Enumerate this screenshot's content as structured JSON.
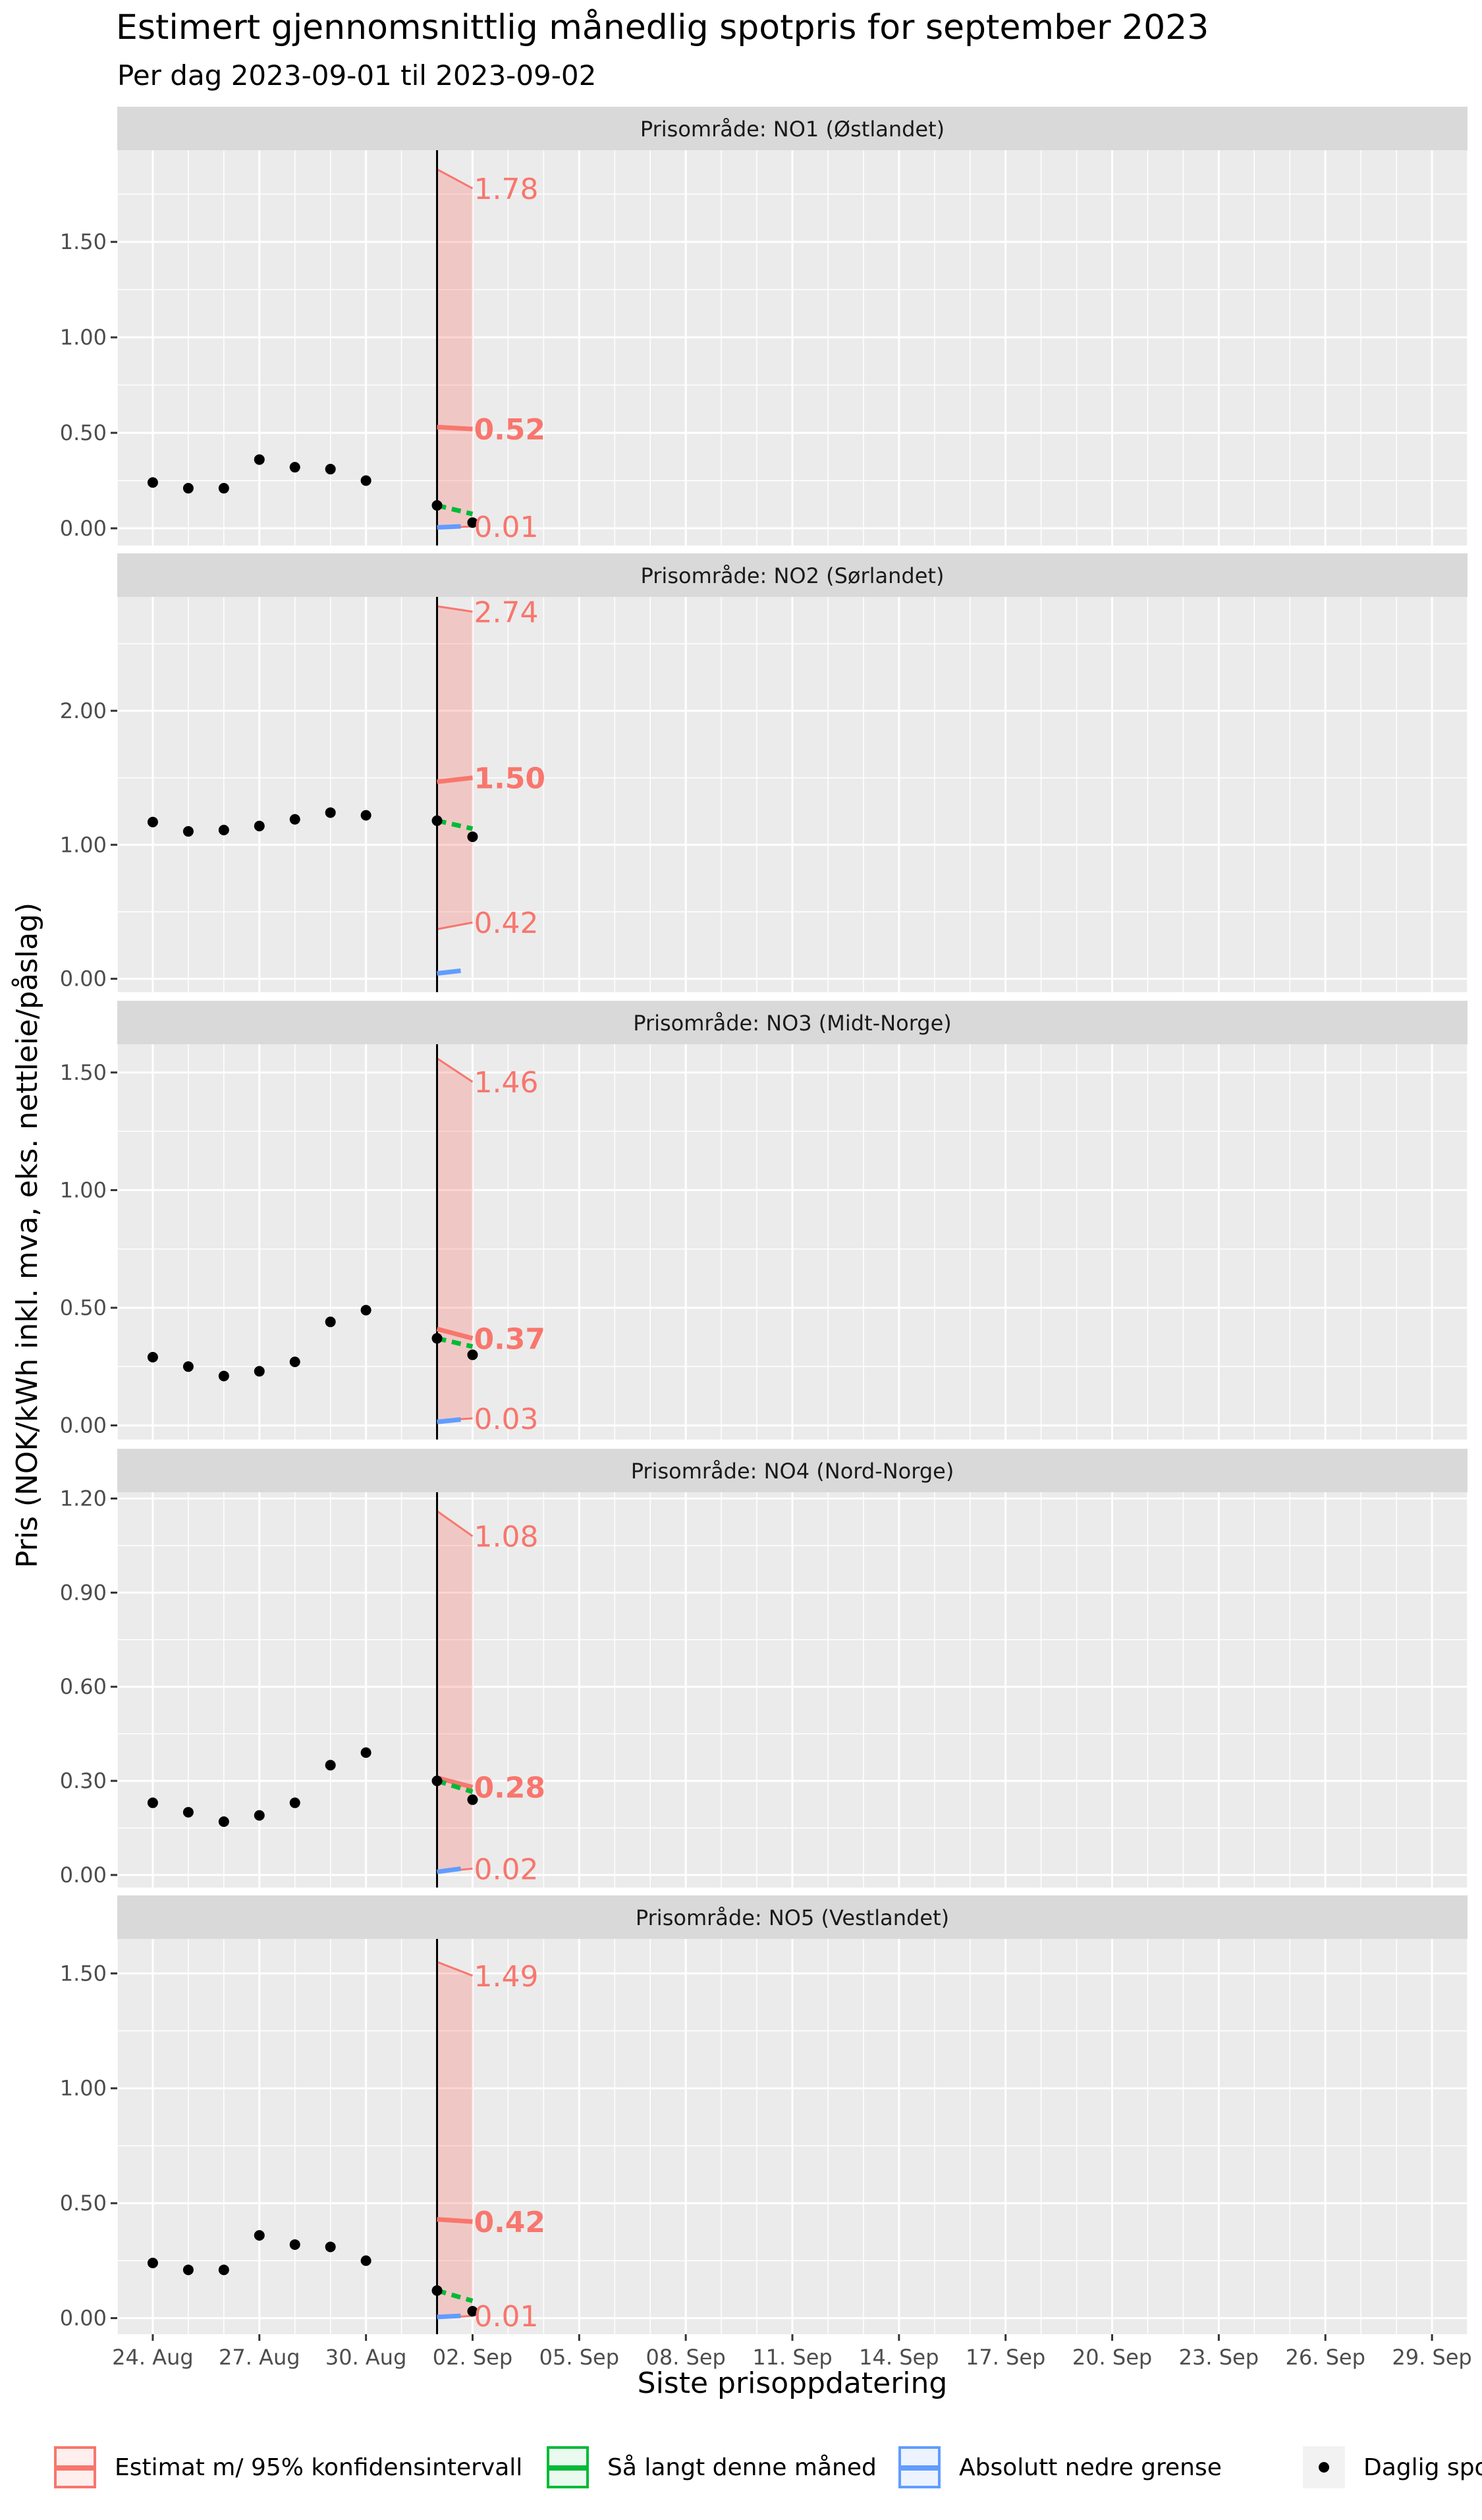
{
  "title": "Estimert gjennomsnittlig månedlig spotpris for september 2023",
  "subtitle": "Per dag 2023-09-01 til 2023-09-02",
  "colors": {
    "estimate": "#F8766D",
    "so_far": "#00BA38",
    "lower": "#619CFF",
    "band": "#F8766D",
    "panel_bg": "#EBEBEB",
    "strip_bg": "#D9D9D9"
  },
  "chart_data": {
    "type": "line",
    "xlabel": "Siste prisoppdatering",
    "ylabel": "Pris (NOK/kWh inkl. mva, eks. nettleie/påslag)",
    "x_axis": {
      "range_days": [
        -8,
        30
      ],
      "tick_days": [
        -7,
        -4,
        -1,
        2,
        5,
        8,
        11,
        14,
        17,
        20,
        23,
        26,
        29
      ],
      "tick_labels": [
        "24. Aug",
        "27. Aug",
        "30. Aug",
        "02. Sep",
        "05. Sep",
        "08. Sep",
        "11. Sep",
        "14. Sep",
        "17. Sep",
        "20. Sep",
        "23. Sep",
        "26. Sep",
        "29. Sep"
      ],
      "vline_day": 1
    },
    "panels": [
      {
        "strip": "Prisområde: NO1 (Østlandet)",
        "ylim": [
          -0.09,
          1.98
        ],
        "y_ticks": [
          0,
          0.5,
          1.0,
          1.5
        ],
        "y_tick_labels": [
          "0.00",
          "0.50",
          "1.00",
          "1.50"
        ],
        "daily_days": [
          -7,
          -6,
          -5,
          -4,
          -3,
          -2,
          -1,
          1,
          2
        ],
        "daily_values": [
          0.24,
          0.21,
          0.21,
          0.36,
          0.32,
          0.31,
          0.25,
          0.12,
          0.03
        ],
        "estimate": [
          0.53,
          0.52
        ],
        "ci_upper": [
          1.88,
          1.78
        ],
        "ci_lower": [
          0.0,
          0.01
        ],
        "so_far": [
          0.12,
          0.075
        ],
        "lower_bound": [
          0.005,
          0.01
        ],
        "labels": {
          "upper": "1.78",
          "estimate": "0.52",
          "lower": "0.01"
        }
      },
      {
        "strip": "Prisområde: NO2 (Sørlandet)",
        "ylim": [
          -0.1,
          2.85
        ],
        "y_ticks": [
          0,
          1.0,
          2.0
        ],
        "y_tick_labels": [
          "0.00",
          "1.00",
          "2.00"
        ],
        "daily_days": [
          -7,
          -6,
          -5,
          -4,
          -3,
          -2,
          -1,
          1,
          2
        ],
        "daily_values": [
          1.17,
          1.1,
          1.11,
          1.14,
          1.19,
          1.24,
          1.22,
          1.18,
          1.06
        ],
        "estimate": [
          1.47,
          1.5
        ],
        "ci_upper": [
          2.78,
          2.74
        ],
        "ci_lower": [
          0.37,
          0.42
        ],
        "so_far": [
          1.18,
          1.12
        ],
        "lower_bound": [
          0.04,
          0.06
        ],
        "labels": {
          "upper": "2.74",
          "estimate": "1.50",
          "lower": "0.42"
        }
      },
      {
        "strip": "Prisområde: NO3 (Midt-Norge)",
        "ylim": [
          -0.06,
          1.62
        ],
        "y_ticks": [
          0,
          0.5,
          1.0,
          1.5
        ],
        "y_tick_labels": [
          "0.00",
          "0.50",
          "1.00",
          "1.50"
        ],
        "daily_days": [
          -7,
          -6,
          -5,
          -4,
          -3,
          -2,
          -1,
          1,
          2
        ],
        "daily_values": [
          0.29,
          0.25,
          0.21,
          0.23,
          0.27,
          0.44,
          0.49,
          0.37,
          0.3
        ],
        "estimate": [
          0.41,
          0.37
        ],
        "ci_upper": [
          1.56,
          1.46
        ],
        "ci_lower": [
          0.02,
          0.03
        ],
        "so_far": [
          0.37,
          0.335
        ],
        "lower_bound": [
          0.015,
          0.025
        ],
        "labels": {
          "upper": "1.46",
          "estimate": "0.37",
          "lower": "0.03"
        }
      },
      {
        "strip": "Prisområde: NO4 (Nord-Norge)",
        "ylim": [
          -0.04,
          1.22
        ],
        "y_ticks": [
          0,
          0.3,
          0.6,
          0.9,
          1.2
        ],
        "y_tick_labels": [
          "0.00",
          "0.30",
          "0.60",
          "0.90",
          "1.20"
        ],
        "daily_days": [
          -7,
          -6,
          -5,
          -4,
          -3,
          -2,
          -1,
          1,
          2
        ],
        "daily_values": [
          0.23,
          0.2,
          0.17,
          0.19,
          0.23,
          0.35,
          0.39,
          0.3,
          0.24
        ],
        "estimate": [
          0.31,
          0.28
        ],
        "ci_upper": [
          1.16,
          1.08
        ],
        "ci_lower": [
          0.01,
          0.02
        ],
        "so_far": [
          0.3,
          0.265
        ],
        "lower_bound": [
          0.01,
          0.02
        ],
        "labels": {
          "upper": "1.08",
          "estimate": "0.28",
          "lower": "0.02"
        }
      },
      {
        "strip": "Prisområde: NO5 (Vestlandet)",
        "ylim": [
          -0.07,
          1.65
        ],
        "y_ticks": [
          0,
          0.5,
          1.0,
          1.5
        ],
        "y_tick_labels": [
          "0.00",
          "0.50",
          "1.00",
          "1.50"
        ],
        "daily_days": [
          -7,
          -6,
          -5,
          -4,
          -3,
          -2,
          -1,
          1,
          2
        ],
        "daily_values": [
          0.24,
          0.21,
          0.21,
          0.36,
          0.32,
          0.31,
          0.25,
          0.12,
          0.03
        ],
        "estimate": [
          0.43,
          0.42
        ],
        "ci_upper": [
          1.55,
          1.49
        ],
        "ci_lower": [
          0.0,
          0.01
        ],
        "so_far": [
          0.12,
          0.075
        ],
        "lower_bound": [
          0.005,
          0.01
        ],
        "labels": {
          "upper": "1.49",
          "estimate": "0.42",
          "lower": "0.01"
        }
      }
    ],
    "legend": [
      {
        "label": "Estimat m/ 95% konfidensintervall",
        "kind": "estimate"
      },
      {
        "label": "Så langt denne måned",
        "kind": "so_far"
      },
      {
        "label": "Absolutt nedre grense",
        "kind": "lower"
      },
      {
        "label": "Daglig spotpris",
        "kind": "daily"
      }
    ]
  }
}
